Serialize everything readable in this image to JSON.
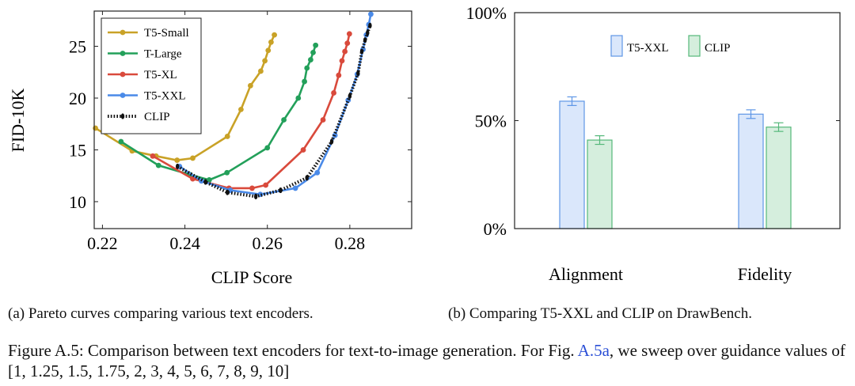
{
  "chart_data": [
    {
      "type": "line",
      "xlabel": "CLIP Score",
      "ylabel": "FID-10K",
      "xlim": [
        0.218,
        0.295
      ],
      "ylim": [
        7.4,
        28.4
      ],
      "xticks": [
        0.22,
        0.24,
        0.26,
        0.28
      ],
      "xtick_labels": [
        "0.22",
        "0.24",
        "0.26",
        "0.28"
      ],
      "yticks": [
        10,
        15,
        20,
        25
      ],
      "ytick_labels": [
        "10",
        "15",
        "20",
        "25"
      ],
      "grid": false,
      "legend_placement": "top-left",
      "series": [
        {
          "name": "T5-Small",
          "color": "#c9a227",
          "style": "solid",
          "x": [
            0.2183,
            0.2272,
            0.233,
            0.2381,
            0.2419,
            0.2503,
            0.2536,
            0.2559,
            0.2584,
            0.2594,
            0.2602,
            0.2609,
            0.2617
          ],
          "y": [
            17.1,
            14.9,
            14.4,
            14.0,
            14.2,
            16.3,
            18.9,
            21.2,
            22.6,
            23.6,
            24.6,
            25.4,
            26.1
          ]
        },
        {
          "name": "T-Large",
          "color": "#23a05a",
          "style": "solid",
          "x": [
            0.2245,
            0.2336,
            0.2413,
            0.2459,
            0.2502,
            0.26,
            0.264,
            0.2675,
            0.269,
            0.2696,
            0.2705,
            0.2711,
            0.2717
          ],
          "y": [
            15.8,
            13.5,
            12.6,
            12.1,
            12.8,
            15.2,
            17.9,
            20.0,
            21.6,
            22.9,
            23.7,
            24.4,
            25.1
          ]
        },
        {
          "name": "T5-XL",
          "color": "#d94a3c",
          "style": "solid",
          "x": [
            0.2322,
            0.2419,
            0.2507,
            0.2563,
            0.2596,
            0.2687,
            0.2735,
            0.2761,
            0.2773,
            0.2781,
            0.2788,
            0.2794,
            0.2799
          ],
          "y": [
            14.4,
            12.2,
            11.3,
            11.3,
            11.6,
            15.0,
            17.9,
            20.5,
            22.2,
            23.6,
            24.5,
            25.3,
            26.2
          ]
        },
        {
          "name": "T5-XXL",
          "color": "#4a8ae8",
          "style": "solid",
          "x": [
            0.2387,
            0.244,
            0.251,
            0.2583,
            0.2668,
            0.2721,
            0.2764,
            0.2796,
            0.2818,
            0.2832,
            0.284,
            0.2846,
            0.2851
          ],
          "y": [
            13.4,
            12.0,
            11.1,
            10.7,
            11.3,
            12.8,
            16.4,
            19.8,
            22.3,
            24.7,
            26.1,
            27.1,
            28.1
          ]
        },
        {
          "name": "CLIP",
          "color": "#111111",
          "style": "dotted",
          "x": [
            0.2382,
            0.245,
            0.2503,
            0.2572,
            0.2632,
            0.2696,
            0.2756,
            0.28,
            0.282,
            0.2829,
            0.2837,
            0.2843,
            0.2849
          ],
          "y": [
            13.4,
            11.9,
            10.9,
            10.5,
            11.1,
            12.3,
            15.8,
            20.2,
            22.4,
            24.5,
            25.6,
            26.3,
            27.0
          ]
        }
      ]
    },
    {
      "type": "bar",
      "categories": [
        "Alignment",
        "Fidelity"
      ],
      "ylim": [
        0,
        100
      ],
      "yticks": [
        0,
        50,
        100
      ],
      "ytick_labels": [
        "0%",
        "50%",
        "100%"
      ],
      "grid": false,
      "legend_placement": "top",
      "series": [
        {
          "name": "T5-XXL",
          "fill": "#dae7fb",
          "stroke": "#5e96e6",
          "values": [
            59,
            53
          ],
          "errors": [
            2.0,
            2.0
          ]
        },
        {
          "name": "CLIP",
          "fill": "#d5eedd",
          "stroke": "#55b87a",
          "values": [
            41,
            47
          ],
          "errors": [
            2.0,
            2.0
          ]
        }
      ]
    }
  ],
  "captions": {
    "a": "(a) Pareto curves comparing various text encoders.",
    "b": "(b) Comparing T5-XXL and CLIP on DrawBench."
  },
  "figure_caption": {
    "prefix": "Figure A.5: Comparison between text encoders for text-to-image generation. For Fig. ",
    "link": "A.5a",
    "middle": ", we sweep over guidance values of ",
    "values": "[1, 1.25, 1.5, 1.75, 2, 3, 4, 5, 6, 7, 8, 9, 10]"
  }
}
